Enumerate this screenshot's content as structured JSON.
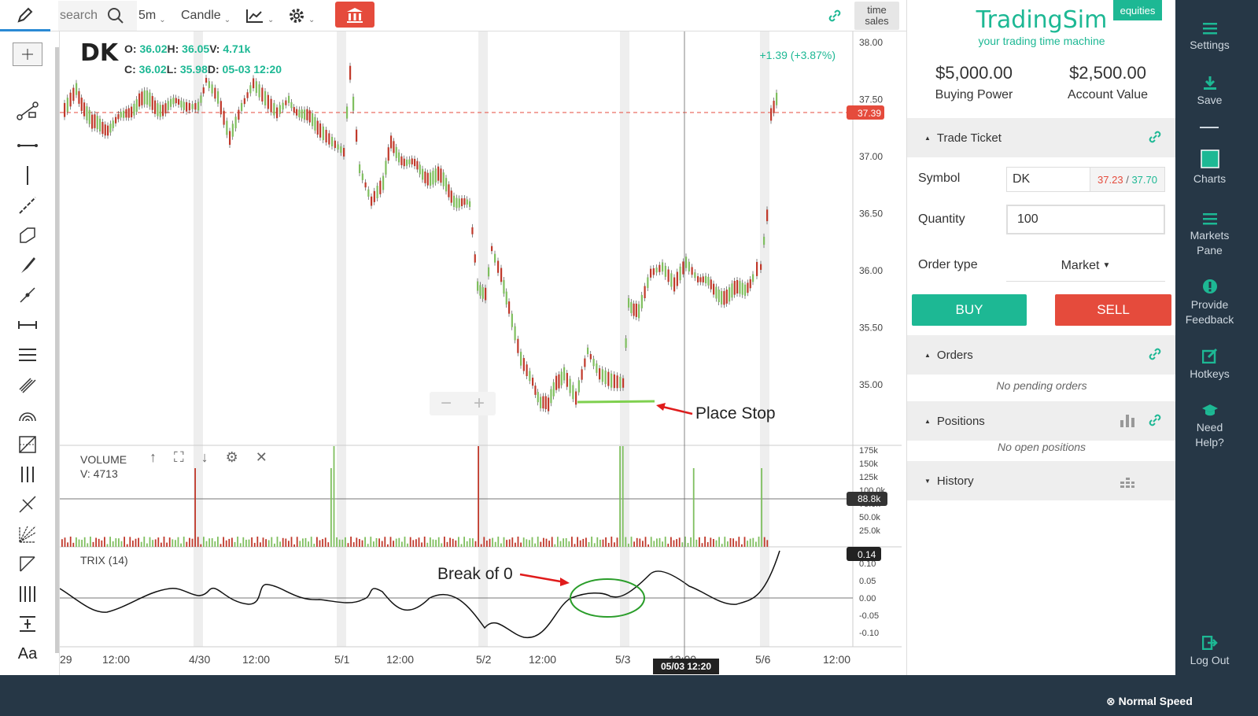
{
  "toolbar": {
    "search_placeholder": "search",
    "interval": "5m",
    "chart_style": "Candle",
    "time_sales_line1": "time",
    "time_sales_line2": "sales"
  },
  "chart": {
    "ticker": "DK",
    "ohlc": {
      "o_label": "O:",
      "o": "36.02",
      "h_label": "H:",
      "h": "36.05",
      "v_label": "V:",
      "v": "4.71k",
      "c_label": "C:",
      "c": "36.02",
      "l_label": "L:",
      "l": "35.98",
      "d_label": "D:",
      "d": "05-03 12:20"
    },
    "change": "+1.39 (+3.87%)",
    "price_ticks": [
      "38.00",
      "37.50",
      "37.00",
      "36.50",
      "36.00",
      "35.50",
      "35.00"
    ],
    "current_price": "37.39",
    "volume_label": "VOLUME",
    "volume_value": "V: 4713",
    "volume_ticks": [
      "175k",
      "150k",
      "125k",
      "100.0k",
      "75.0k",
      "50.0k",
      "25.0k"
    ],
    "volume_marker": "88.8k",
    "trix_label": "TRIX (14)",
    "trix_value": "0.14",
    "trix_ticks": [
      "0.10",
      "0.05",
      "0.00",
      "-0.05",
      "-0.10"
    ],
    "x_ticks": [
      "29",
      "12:00",
      "4/30",
      "12:00",
      "5/1",
      "12:00",
      "5/2",
      "12:00",
      "5/3",
      "12:00",
      "5/6",
      "12:00"
    ],
    "cursor_date": "05/03 12:20",
    "annotation_stop": "Place Stop",
    "annotation_break": "Break of 0",
    "colors": {
      "up": "#7fbf5f",
      "down": "#c0392b",
      "accent": "#1db894",
      "price_line": "#e54b3c"
    }
  },
  "panel": {
    "brand": "TradingSim",
    "tagline": "your trading time machine",
    "badge": "equities",
    "buying_power": "$5,000.00",
    "buying_power_label": "Buying Power",
    "account_value": "$2,500.00",
    "account_value_label": "Account Value",
    "trade_ticket": "Trade Ticket",
    "symbol_label": "Symbol",
    "symbol_value": "DK",
    "bid": "37.23",
    "quote_sep": "/",
    "ask": "37.70",
    "quantity_label": "Quantity",
    "quantity_value": "100",
    "order_type_label": "Order type",
    "order_type_value": "Market",
    "buy_label": "BUY",
    "sell_label": "SELL",
    "orders": "Orders",
    "orders_empty": "No pending orders",
    "positions": "Positions",
    "positions_empty": "No open positions",
    "history": "History"
  },
  "nav": {
    "settings": "Settings",
    "save": "Save",
    "charts": "Charts",
    "markets_pane_1": "Markets",
    "markets_pane_2": "Pane",
    "feedback_1": "Provide",
    "feedback_2": "Feedback",
    "hotkeys": "Hotkeys",
    "help_1": "Need",
    "help_2": "Help?",
    "logout": "Log Out"
  },
  "footer": {
    "speed": "Normal Speed"
  }
}
